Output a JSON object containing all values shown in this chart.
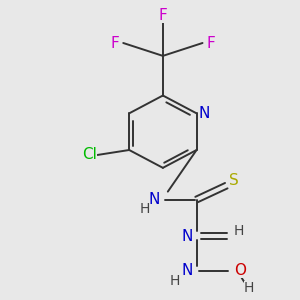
{
  "background_color": "#e8e8e8",
  "figsize": [
    3.0,
    3.0
  ],
  "dpi": 100,
  "bond_color": "#333333",
  "lw": 1.4,
  "colors": {
    "N": "#0000cc",
    "Cl": "#00bb00",
    "S": "#aaaa00",
    "F": "#cc00cc",
    "O": "#cc0000",
    "C": "#333333",
    "H": "#444444"
  }
}
